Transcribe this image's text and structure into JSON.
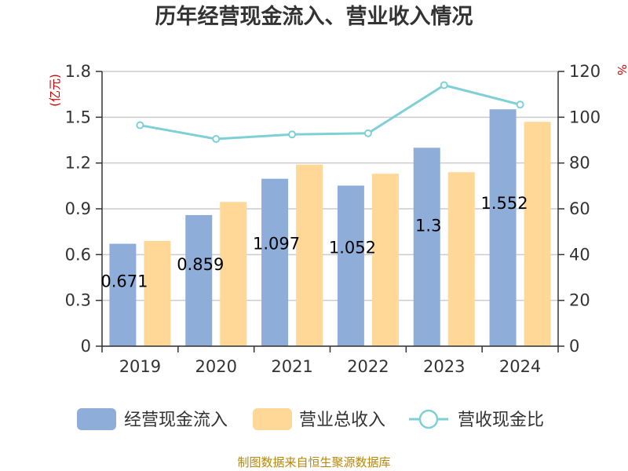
{
  "chart_data": {
    "type": "bar",
    "title": "历年经营现金流入、营业收入情况",
    "categories": [
      "2019",
      "2020",
      "2021",
      "2022",
      "2023",
      "2024"
    ],
    "series": [
      {
        "name": "经营现金流入",
        "type": "bar",
        "axis": "left",
        "color": "#8eadd9",
        "values": [
          0.671,
          0.859,
          1.097,
          1.052,
          1.3,
          1.552
        ],
        "labels": [
          "0.671",
          "0.859",
          "1.097",
          "1.052",
          "1.3",
          "1.552"
        ]
      },
      {
        "name": "营业总收入",
        "type": "bar",
        "axis": "left",
        "color": "#ffd897",
        "values": [
          0.69,
          0.945,
          1.19,
          1.13,
          1.14,
          1.47
        ]
      },
      {
        "name": "营收现金比",
        "type": "line",
        "axis": "right",
        "color": "#7fd0d6",
        "values": [
          96.5,
          90.5,
          92.5,
          93.0,
          114.0,
          105.5
        ]
      }
    ],
    "y_left": {
      "label": "(亿元)",
      "ylim": [
        0,
        1.8
      ],
      "ticks": [
        "0",
        "0.3",
        "0.6",
        "0.9",
        "1.2",
        "1.5",
        "1.8"
      ]
    },
    "y_right": {
      "label": "%",
      "ylim": [
        0,
        120
      ],
      "ticks": [
        "0",
        "20",
        "40",
        "60",
        "80",
        "100",
        "120"
      ]
    },
    "grid": true,
    "legend": "bottom"
  },
  "source": "制图数据来自恒生聚源数据库"
}
